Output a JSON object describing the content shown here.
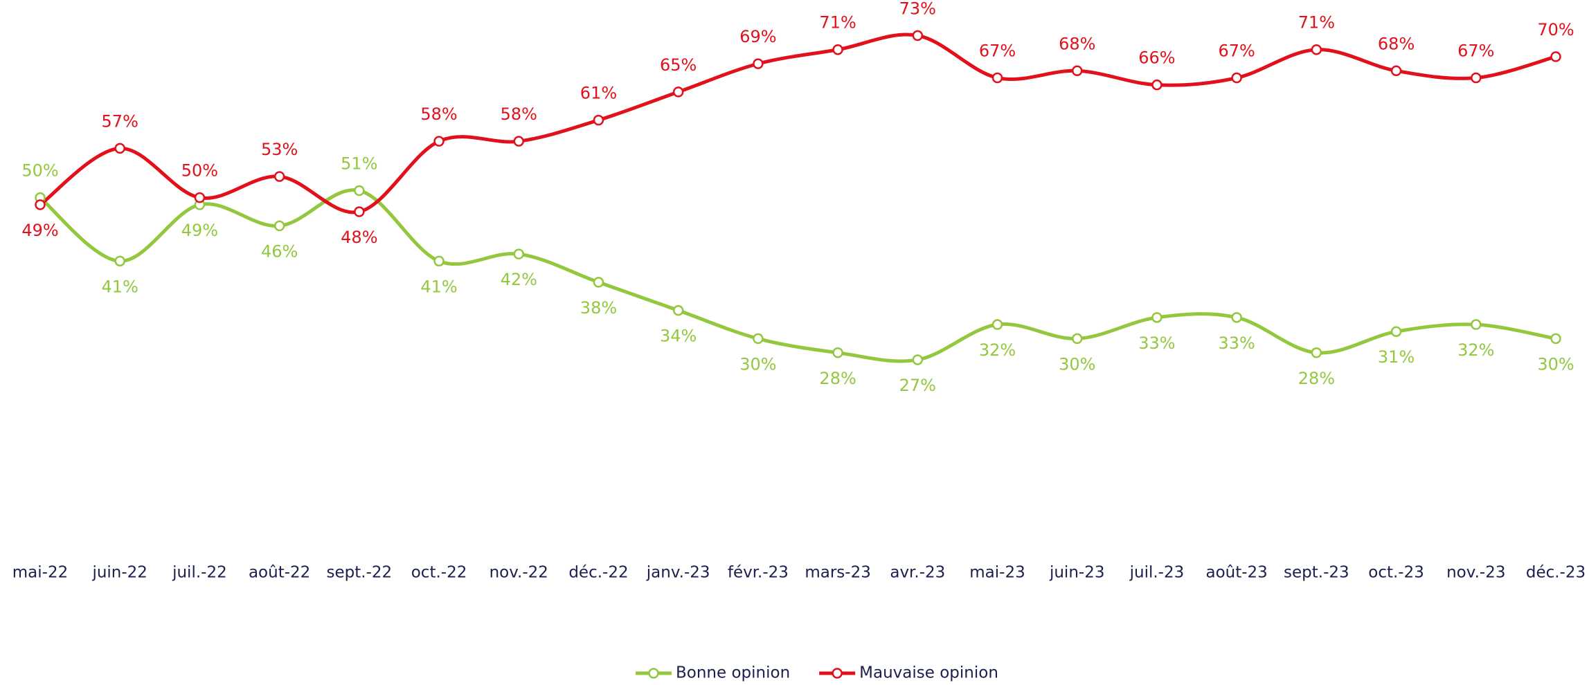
{
  "chart_data": {
    "type": "line",
    "categories": [
      "mai-22",
      "juin-22",
      "juil.-22",
      "août-22",
      "sept.-22",
      "oct.-22",
      "nov.-22",
      "déc.-22",
      "janv.-23",
      "févr.-23",
      "mars-23",
      "avr.-23",
      "mai-23",
      "juin-23",
      "juil.-23",
      "août-23",
      "sept.-23",
      "oct.-23",
      "nov.-23",
      "déc.-23"
    ],
    "series": [
      {
        "name": "Bonne opinion",
        "color": "#93c83e",
        "values": [
          50,
          41,
          49,
          46,
          51,
          41,
          42,
          38,
          34,
          30,
          28,
          27,
          32,
          30,
          33,
          33,
          28,
          31,
          32,
          30
        ],
        "value_labels": [
          "50%",
          "41%",
          "49%",
          "46%",
          "51%",
          "41%",
          "42%",
          "38%",
          "34%",
          "30%",
          "28%",
          "27%",
          "32%",
          "30%",
          "33%",
          "33%",
          "28%",
          "31%",
          "32%",
          "30%"
        ]
      },
      {
        "name": "Mauvaise opinion",
        "color": "#e2101b",
        "values": [
          49,
          57,
          50,
          53,
          48,
          58,
          58,
          61,
          65,
          69,
          71,
          73,
          67,
          68,
          66,
          67,
          71,
          68,
          67,
          70
        ],
        "value_labels": [
          "49%",
          "57%",
          "50%",
          "53%",
          "48%",
          "58%",
          "58%",
          "61%",
          "65%",
          "69%",
          "71%",
          "73%",
          "67%",
          "68%",
          "66%",
          "67%",
          "71%",
          "68%",
          "67%",
          "70%"
        ]
      }
    ],
    "ylim": [
      0,
      75
    ],
    "legend": "bottom"
  }
}
